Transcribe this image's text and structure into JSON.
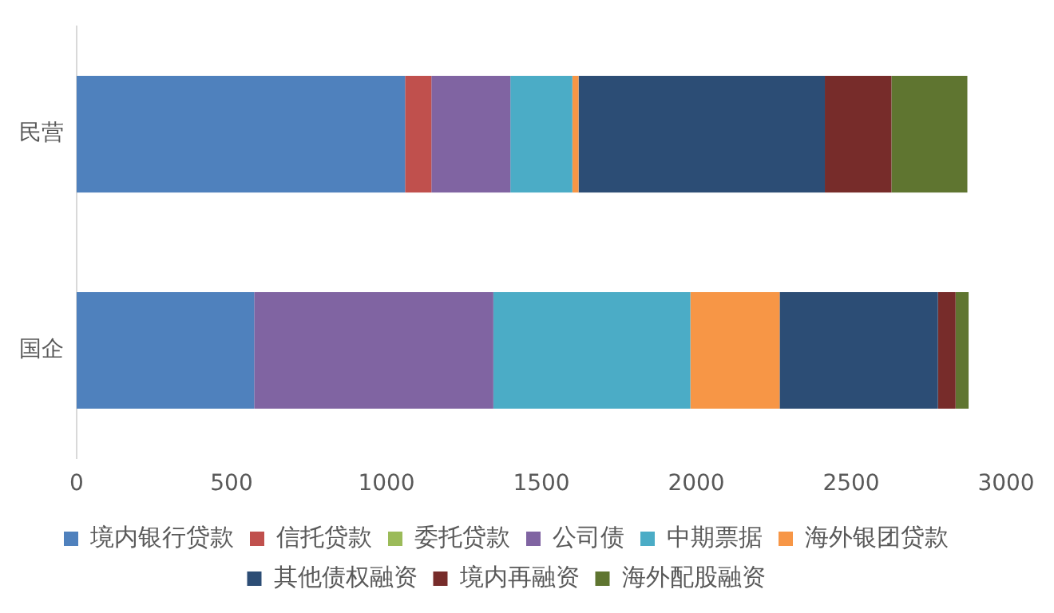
{
  "chart_data": {
    "type": "bar",
    "orientation": "horizontal",
    "stacked": true,
    "categories": [
      "民营",
      "国企"
    ],
    "series": [
      {
        "name": "境内银行贷款",
        "color": "#4f81bd",
        "values": [
          1060,
          573
        ]
      },
      {
        "name": "信托贷款",
        "color": "#c0504d",
        "values": [
          85,
          0
        ]
      },
      {
        "name": "委托贷款",
        "color": "#9bbb59",
        "values": [
          0,
          0
        ]
      },
      {
        "name": "公司债",
        "color": "#8064a2",
        "values": [
          255,
          772
        ]
      },
      {
        "name": "中期票据",
        "color": "#4bacc6",
        "values": [
          200,
          636
        ]
      },
      {
        "name": "海外银团贷款",
        "color": "#f79646",
        "values": [
          20,
          288
        ]
      },
      {
        "name": "其他债权融资",
        "color": "#2c4d75",
        "values": [
          795,
          511
        ]
      },
      {
        "name": "境内再融资",
        "color": "#772c2a",
        "values": [
          215,
          57
        ]
      },
      {
        "name": "海外配股融资",
        "color": "#5f7530",
        "values": [
          245,
          42
        ]
      }
    ],
    "xlim": [
      0,
      3000
    ],
    "xticks": [
      0,
      500,
      1000,
      1500,
      2000,
      2500,
      3000
    ],
    "grid": false,
    "legend": "bottom"
  }
}
